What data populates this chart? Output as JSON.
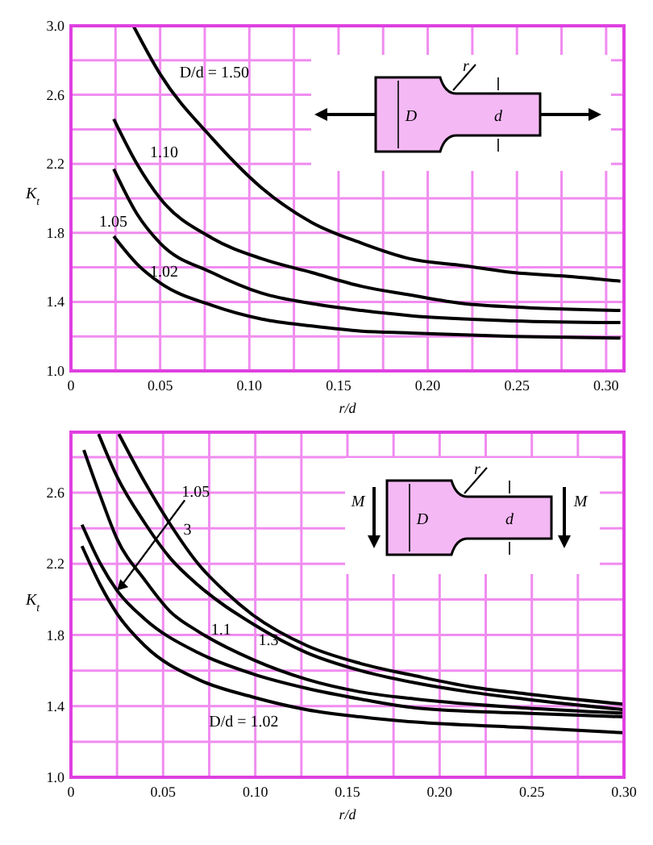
{
  "chart_data": [
    {
      "type": "line",
      "xlabel": "r/d",
      "ylabel": "K$_{t}$",
      "xlim": [
        0,
        0.31
      ],
      "ylim": [
        1,
        3
      ],
      "xticks": [
        {
          "value": 0,
          "label": "0"
        },
        {
          "value": 0.025,
          "label": null
        },
        {
          "value": 0.05,
          "label": "0.05"
        },
        {
          "value": 0.075,
          "label": null
        },
        {
          "value": 0.1,
          "label": "0.10"
        },
        {
          "value": 0.125,
          "label": null
        },
        {
          "value": 0.15,
          "label": "0.15"
        },
        {
          "value": 0.175,
          "label": null
        },
        {
          "value": 0.2,
          "label": "0.20"
        },
        {
          "value": 0.225,
          "label": null
        },
        {
          "value": 0.25,
          "label": "0.25"
        },
        {
          "value": 0.275,
          "label": null
        },
        {
          "value": 0.3,
          "label": "0.30"
        }
      ],
      "yticks": [
        {
          "value": 1,
          "label": "1.0"
        },
        {
          "value": 1.2,
          "label": null
        },
        1.4,
        {
          "value": 1.6,
          "label": null
        },
        1.8,
        {
          "value": 2,
          "label": null
        },
        2.2,
        {
          "value": 2.4,
          "label": null
        },
        2.6,
        {
          "value": 2.8,
          "label": null
        },
        {
          "value": 3,
          "label": "3.0"
        }
      ],
      "grid": true,
      "marker": "none",
      "line_style": "solid",
      "annotations": [
        "r",
        "D",
        "d"
      ],
      "series": [
        {
          "name": "D/d = 1.50",
          "color": "#000000",
          "x": [
            0.035,
            0.05,
            0.079,
            0.107,
            0.135,
            0.163,
            0.19,
            0.22,
            0.248,
            0.276,
            0.308
          ],
          "values": [
            3.0,
            2.72,
            2.35,
            2.06,
            1.86,
            1.74,
            1.65,
            1.61,
            1.57,
            1.55,
            1.52
          ]
        },
        {
          "name": "1.10",
          "color": "#000000",
          "x": [
            0.024,
            0.037,
            0.05,
            0.079,
            0.107,
            0.135,
            0.163,
            0.19,
            0.22,
            0.248,
            0.308
          ],
          "values": [
            2.46,
            2.2,
            2.0,
            1.77,
            1.65,
            1.57,
            1.49,
            1.44,
            1.39,
            1.37,
            1.35
          ]
        },
        {
          "name": "1.05",
          "color": "#000000",
          "x": [
            0.024,
            0.037,
            0.05,
            0.079,
            0.107,
            0.135,
            0.163,
            0.19,
            0.248,
            0.308
          ],
          "values": [
            2.17,
            1.91,
            1.74,
            1.57,
            1.45,
            1.39,
            1.35,
            1.32,
            1.29,
            1.28
          ]
        },
        {
          "name": "1.02",
          "color": "#000000",
          "x": [
            0.024,
            0.037,
            0.05,
            0.079,
            0.107,
            0.135,
            0.163,
            0.19,
            0.248,
            0.308
          ],
          "values": [
            1.78,
            1.62,
            1.51,
            1.38,
            1.3,
            1.26,
            1.23,
            1.22,
            1.2,
            1.19
          ]
        }
      ]
    },
    {
      "type": "line",
      "xlabel": "r/d",
      "ylabel": "K$_{t}$",
      "xlim": [
        0,
        0.3
      ],
      "ylim": [
        1,
        2.94
      ],
      "xticks": [
        {
          "value": 0,
          "label": "0"
        },
        {
          "value": 0.025,
          "label": null
        },
        {
          "value": 0.05,
          "label": "0.05"
        },
        {
          "value": 0.075,
          "label": null
        },
        {
          "value": 0.1,
          "label": "0.10"
        },
        {
          "value": 0.125,
          "label": null
        },
        {
          "value": 0.15,
          "label": "0.15"
        },
        {
          "value": 0.175,
          "label": null
        },
        {
          "value": 0.2,
          "label": "0.20"
        },
        {
          "value": 0.225,
          "label": null
        },
        {
          "value": 0.25,
          "label": "0.25"
        },
        {
          "value": 0.275,
          "label": null
        },
        {
          "value": 0.3,
          "label": "0.30"
        }
      ],
      "yticks": [
        {
          "value": 1,
          "label": "1.0"
        },
        {
          "value": 1.2,
          "label": null
        },
        1.4,
        {
          "value": 1.6,
          "label": null
        },
        1.8,
        {
          "value": 2,
          "label": null
        },
        2.2,
        {
          "value": 2.4,
          "label": null
        },
        2.6,
        {
          "value": 2.8,
          "label": null
        }
      ],
      "grid": true,
      "marker": "none",
      "line_style": "solid",
      "annotations": [
        "r",
        "M",
        "D",
        "d",
        "M"
      ],
      "series": [
        {
          "name": "3",
          "color": "#000000",
          "x": [
            0.026,
            0.04,
            0.054,
            0.069,
            0.084,
            0.099,
            0.128,
            0.157,
            0.187,
            0.216,
            0.246,
            0.3
          ],
          "values": [
            2.93,
            2.66,
            2.42,
            2.2,
            2.04,
            1.91,
            1.74,
            1.64,
            1.57,
            1.51,
            1.47,
            1.41
          ]
        },
        {
          "name": "1.3",
          "color": "#000000",
          "x": [
            0.015,
            0.025,
            0.04,
            0.054,
            0.069,
            0.099,
            0.128,
            0.157,
            0.187,
            0.216,
            0.246,
            0.3
          ],
          "values": [
            2.93,
            2.69,
            2.43,
            2.23,
            2.08,
            1.86,
            1.7,
            1.6,
            1.53,
            1.48,
            1.44,
            1.38
          ]
        },
        {
          "name": "1.1",
          "color": "#000000",
          "x": [
            0.007,
            0.016,
            0.025,
            0.04,
            0.054,
            0.069,
            0.099,
            0.128,
            0.157,
            0.187,
            0.246,
            0.3
          ],
          "values": [
            2.84,
            2.58,
            2.34,
            2.11,
            1.93,
            1.82,
            1.66,
            1.55,
            1.48,
            1.44,
            1.39,
            1.36
          ]
        },
        {
          "name": "1.05",
          "color": "#000000",
          "x": [
            0.006,
            0.016,
            0.025,
            0.04,
            0.069,
            0.099,
            0.128,
            0.157,
            0.187,
            0.246,
            0.3
          ],
          "values": [
            2.42,
            2.2,
            2.05,
            1.89,
            1.7,
            1.58,
            1.5,
            1.44,
            1.39,
            1.36,
            1.34
          ]
        },
        {
          "name": "D/d = 1.02",
          "color": "#000000",
          "x": [
            0.006,
            0.016,
            0.025,
            0.04,
            0.069,
            0.099,
            0.128,
            0.157,
            0.187,
            0.246,
            0.3
          ],
          "values": [
            2.3,
            2.08,
            1.92,
            1.74,
            1.55,
            1.45,
            1.38,
            1.34,
            1.31,
            1.28,
            1.25
          ]
        }
      ]
    }
  ]
}
